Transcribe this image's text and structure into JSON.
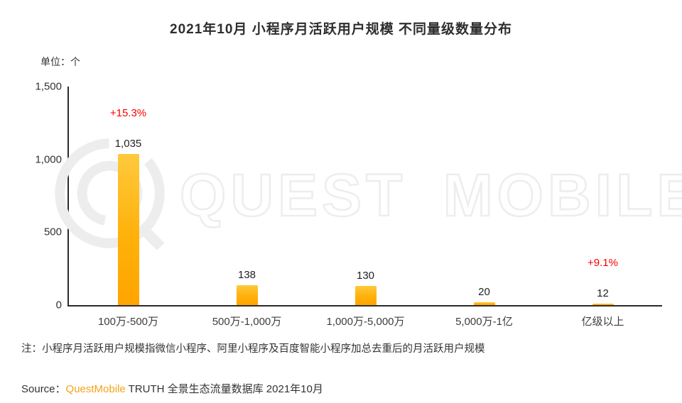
{
  "title": "2021年10月 小程序月活跃用户规模 不同量级数量分布",
  "unit_label": "单位：个",
  "chart_data": {
    "type": "bar",
    "categories": [
      "100万-500万",
      "500万-1,000万",
      "1,000万-5,000万",
      "5,000万-1亿",
      "亿级以上"
    ],
    "values": [
      1035,
      138,
      130,
      20,
      12
    ],
    "values_display": [
      "1,035",
      "138",
      "130",
      "20",
      "12"
    ],
    "annotations": {
      "0": "+15.3%",
      "4": "+9.1%"
    },
    "title": "2021年10月 小程序月活跃用户规模 不同量级数量分布",
    "ylabel": "单位：个",
    "xlabel": "",
    "ylim": [
      0,
      1500
    ],
    "yticks": [
      "1,500",
      "1,000",
      "500",
      "0"
    ],
    "grid": "off",
    "legend": "none",
    "bar_color_top": "#FFC93C",
    "bar_color_bottom": "#FFA400",
    "annotation_color": "#FB0000"
  },
  "watermark": {
    "text": "QUEST MOBILE"
  },
  "note": "注：小程序月活跃用户规模指微信小程序、阿里小程序及百度智能小程序加总去重后的月活跃用户规模",
  "source": {
    "prefix": "Source：",
    "brand": "QuestMobile",
    "suffix": " TRUTH 全景生态流量数据库 2021年10月"
  }
}
